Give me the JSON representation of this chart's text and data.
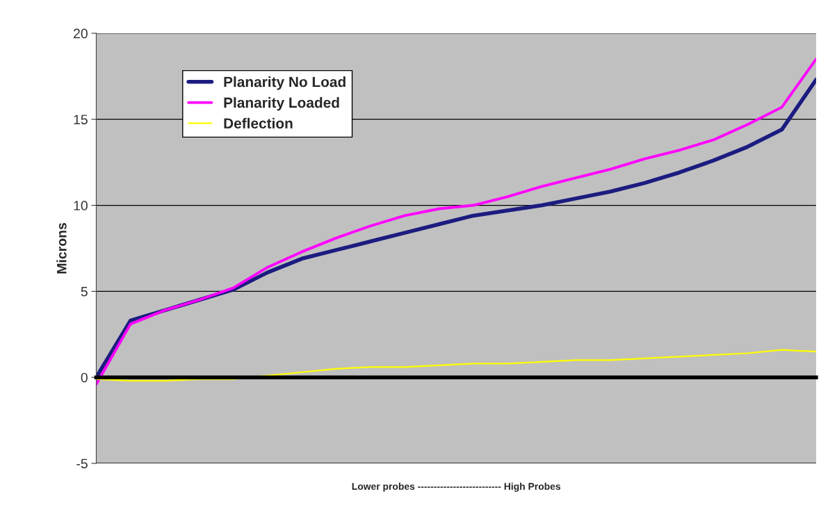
{
  "chart_data": {
    "type": "line",
    "xlabel": "Lower probes -------------------------- High Probes",
    "ylabel": "Microns",
    "categories": [
      null,
      null,
      null,
      null,
      null,
      null,
      null,
      null,
      null,
      null,
      null,
      null,
      null,
      null,
      null,
      null,
      null,
      null,
      null,
      null,
      null,
      null
    ],
    "series": [
      {
        "name": "Planarity No Load",
        "color": "#1c1c80",
        "values": [
          0,
          3.3,
          3.9,
          4.5,
          5.1,
          6.1,
          6.9,
          7.4,
          7.9,
          8.4,
          8.9,
          9.4,
          9.7,
          10.0,
          10.4,
          10.8,
          11.3,
          11.9,
          12.6,
          13.4,
          14.4,
          17.3
        ]
      },
      {
        "name": "Planarity Loaded",
        "color": "#ff00ff",
        "values": [
          -0.4,
          3.1,
          3.9,
          4.5,
          5.2,
          6.4,
          7.3,
          8.1,
          8.8,
          9.4,
          9.8,
          10.0,
          10.5,
          11.1,
          11.6,
          12.1,
          12.7,
          13.2,
          13.8,
          14.7,
          15.7,
          18.5
        ]
      },
      {
        "name": "Deflection",
        "color": "#ffff00",
        "values": [
          -0.1,
          -0.2,
          -0.2,
          -0.1,
          -0.1,
          0.1,
          0.3,
          0.5,
          0.6,
          0.6,
          0.7,
          0.8,
          0.8,
          0.9,
          1.0,
          1.0,
          1.1,
          1.2,
          1.3,
          1.4,
          1.6,
          1.5
        ]
      }
    ],
    "ylim": [
      -5,
      20
    ],
    "yticks": [
      -5,
      0,
      5,
      10,
      15,
      20
    ],
    "grid": "y",
    "legend": "top left"
  }
}
